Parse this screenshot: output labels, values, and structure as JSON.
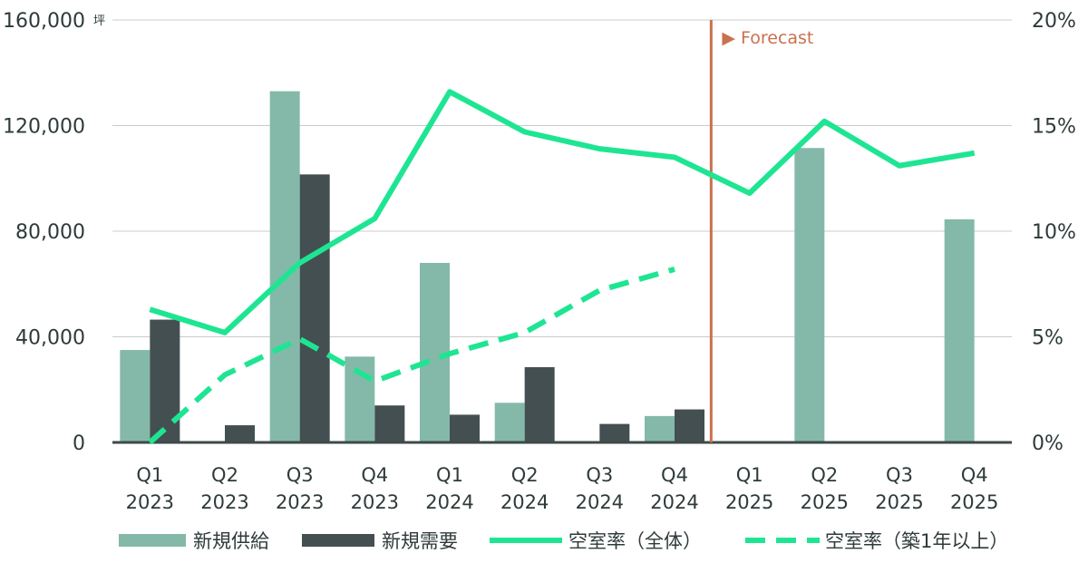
{
  "chart_data": {
    "type": "bar",
    "categories": [
      [
        "Q1",
        "2023"
      ],
      [
        "Q2",
        "2023"
      ],
      [
        "Q3",
        "2023"
      ],
      [
        "Q4",
        "2023"
      ],
      [
        "Q1",
        "2024"
      ],
      [
        "Q2",
        "2024"
      ],
      [
        "Q3",
        "2024"
      ],
      [
        "Q4",
        "2024"
      ],
      [
        "Q1",
        "2025"
      ],
      [
        "Q2",
        "2025"
      ],
      [
        "Q3",
        "2025"
      ],
      [
        "Q4",
        "2025"
      ]
    ],
    "y_left": {
      "unit": "坪",
      "ylim": [
        0,
        160000
      ],
      "ticks": [
        0,
        40000,
        80000,
        120000,
        160000
      ],
      "tick_labels": [
        "0",
        "40,000",
        "80,000",
        "120,000",
        "160,000"
      ]
    },
    "y_right": {
      "ylim": [
        0,
        20
      ],
      "ticks": [
        0,
        5,
        10,
        15,
        20
      ],
      "tick_labels": [
        "0%",
        "5%",
        "10%",
        "15%",
        "20%"
      ]
    },
    "series": [
      {
        "name": "新規供給",
        "kind": "bar",
        "axis": "left",
        "color": "#84b9aa",
        "values": [
          35000,
          null,
          133000,
          32500,
          68000,
          15000,
          null,
          10000,
          null,
          111500,
          null,
          84500
        ]
      },
      {
        "name": "新規需要",
        "kind": "bar",
        "axis": "left",
        "color": "#444f51",
        "values": [
          46500,
          6500,
          101500,
          14000,
          10500,
          28500,
          7000,
          12500,
          null,
          null,
          null,
          null
        ]
      },
      {
        "name": "空室率（全体）",
        "kind": "line",
        "axis": "right",
        "style": "solid",
        "color": "#1ee592",
        "values": [
          6.3,
          5.2,
          8.5,
          10.6,
          16.6,
          14.7,
          13.9,
          13.5,
          11.8,
          15.2,
          13.1,
          13.7
        ]
      },
      {
        "name": "空室率（築1年以上）",
        "kind": "line",
        "axis": "right",
        "style": "dashed",
        "color": "#1ee592",
        "values": [
          0.0,
          3.2,
          4.9,
          2.9,
          4.2,
          5.2,
          7.2,
          8.2,
          null,
          null,
          null,
          null
        ]
      }
    ],
    "forecast": {
      "label": "▶ Forecast",
      "color": "#c9714e",
      "after_category_index": 7
    },
    "grid": true,
    "legend_position": "bottom"
  }
}
